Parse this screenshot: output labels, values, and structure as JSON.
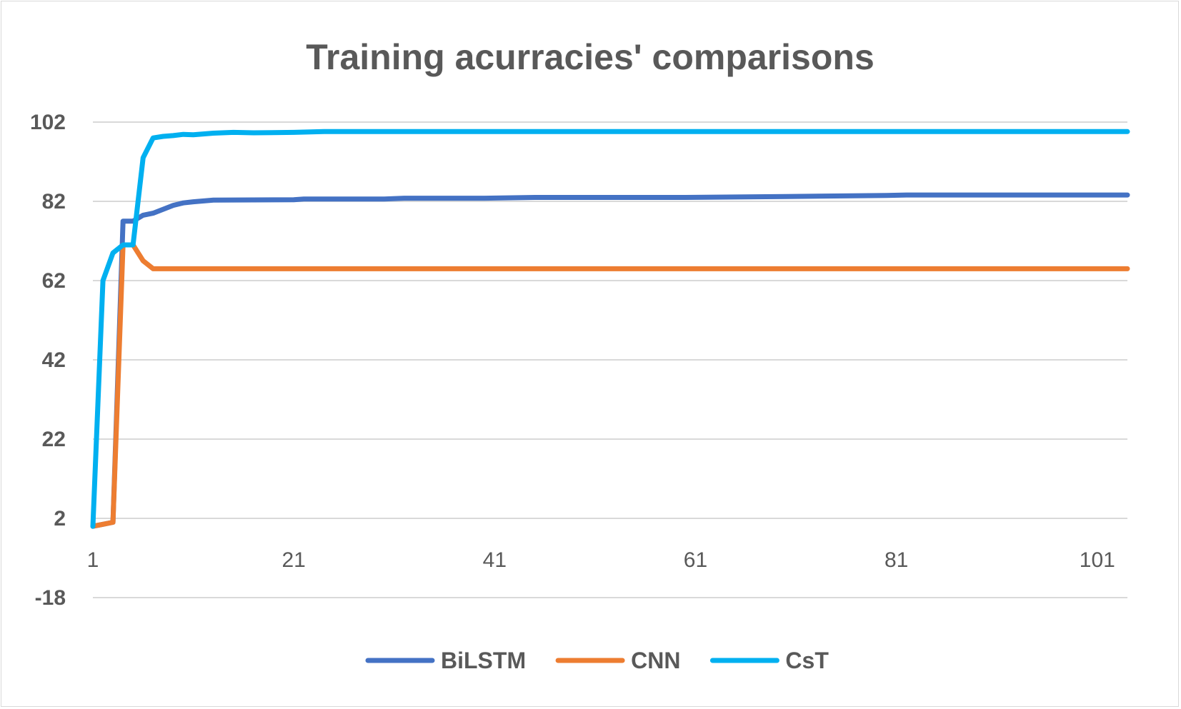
{
  "chart_data": {
    "type": "line",
    "title": "Training acurracies' comparisons",
    "xlabel": "",
    "ylabel": "",
    "xlim": [
      1,
      104
    ],
    "ylim": [
      -18,
      102
    ],
    "y_ticks": [
      -18,
      2,
      22,
      42,
      62,
      82,
      102
    ],
    "x_ticks": [
      1,
      21,
      41,
      61,
      81,
      101
    ],
    "grid": true,
    "legend_position": "bottom",
    "series": [
      {
        "name": "BiLSTM",
        "color": "#4472C4",
        "points": [
          [
            1,
            0
          ],
          [
            2,
            0.5
          ],
          [
            3,
            1
          ],
          [
            4,
            77
          ],
          [
            5,
            77
          ],
          [
            6,
            78.5
          ],
          [
            7,
            79
          ],
          [
            8,
            80
          ],
          [
            9,
            81
          ],
          [
            10,
            81.6
          ],
          [
            11,
            81.9
          ],
          [
            13,
            82.3
          ],
          [
            21,
            82.4
          ],
          [
            22,
            82.6
          ],
          [
            30,
            82.6
          ],
          [
            32,
            82.8
          ],
          [
            40,
            82.8
          ],
          [
            45,
            83
          ],
          [
            60,
            83
          ],
          [
            70,
            83.2
          ],
          [
            80,
            83.5
          ],
          [
            82,
            83.6
          ],
          [
            104,
            83.6
          ]
        ]
      },
      {
        "name": "CNN",
        "color": "#ED7D31",
        "points": [
          [
            1,
            0
          ],
          [
            2,
            0.5
          ],
          [
            3,
            1
          ],
          [
            4,
            71
          ],
          [
            5,
            71
          ],
          [
            6,
            67
          ],
          [
            7,
            65
          ],
          [
            104,
            65
          ]
        ]
      },
      {
        "name": "CsT",
        "color": "#00B0F0",
        "points": [
          [
            1,
            0
          ],
          [
            2,
            62
          ],
          [
            3,
            69
          ],
          [
            4,
            71
          ],
          [
            5,
            71
          ],
          [
            6,
            93
          ],
          [
            7,
            98
          ],
          [
            8,
            98.4
          ],
          [
            9,
            98.6
          ],
          [
            10,
            98.9
          ],
          [
            11,
            98.8
          ],
          [
            13,
            99.2
          ],
          [
            15,
            99.4
          ],
          [
            17,
            99.3
          ],
          [
            21,
            99.4
          ],
          [
            24,
            99.6
          ],
          [
            104,
            99.6
          ]
        ]
      }
    ]
  }
}
